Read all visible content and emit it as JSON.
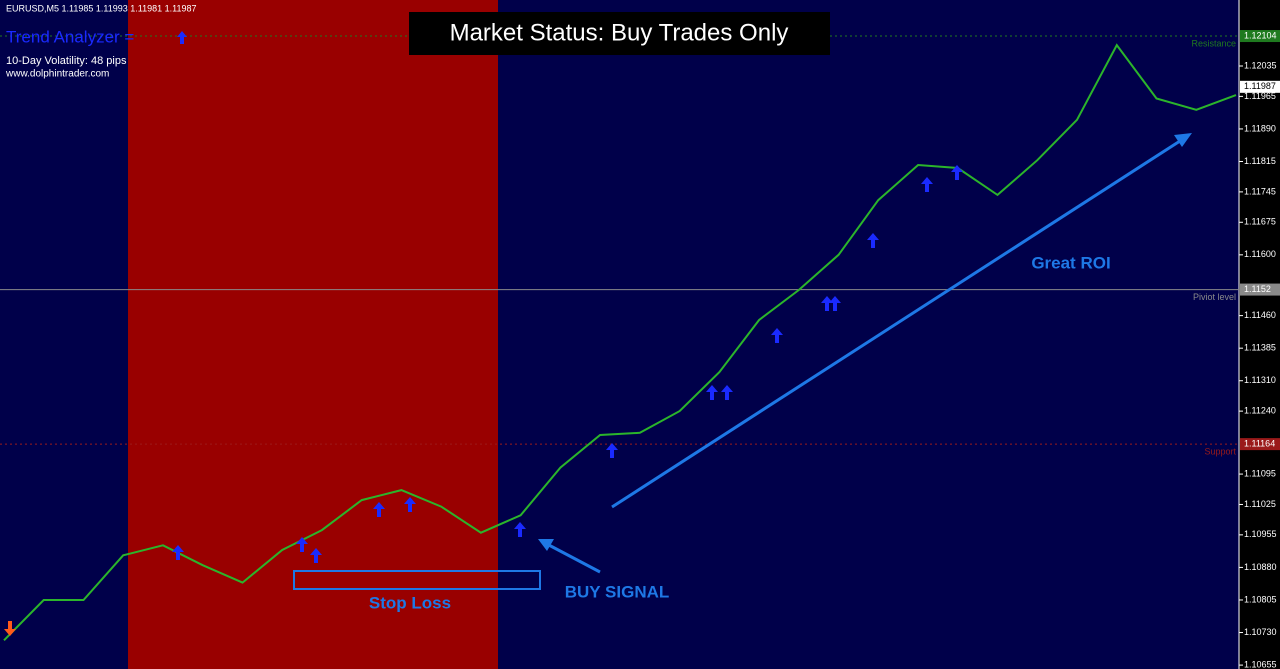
{
  "header": {
    "symbol": "EURUSD,M5  1.11985 1.11993 1.11981 1.11987",
    "indicator": "Trend Analyzer =",
    "volatility": "10-Day Volatility: 48 pips",
    "website": "www.dolphintrader.com"
  },
  "status": "Market Status: Buy Trades Only",
  "annotations": {
    "roi": "Great ROI",
    "buy": "BUY SIGNAL",
    "stop": "Stop Loss"
  },
  "chart_data": {
    "type": "line",
    "series": [
      {
        "color": "#2bb52b",
        "values": [
          1.10712,
          1.10805,
          1.10805,
          1.10908,
          1.10931,
          1.10885,
          1.10845,
          1.1092,
          1.10966,
          1.11035,
          1.11058,
          1.1102,
          1.1096,
          1.11,
          1.1111,
          1.11185,
          1.1119,
          1.1124,
          1.1133,
          1.1145,
          1.11519,
          1.116,
          1.11726,
          1.11807,
          1.118,
          1.11738,
          1.11818,
          1.11911,
          1.12083,
          1.1196,
          1.11934,
          1.11968
        ]
      }
    ],
    "ylim": [
      1.10646,
      1.12187
    ],
    "yticks": [
      1.12035,
      1.11965,
      {
        "value": 1.1189,
        "label": "1.11890"
      },
      1.11815,
      1.11745,
      1.11675,
      {
        "value": 1.116,
        "label": "1.11600"
      },
      {
        "value": 1.1146,
        "label": "1.11460"
      },
      1.11385,
      {
        "value": 1.1131,
        "label": "1.11310"
      },
      {
        "value": 1.1124,
        "label": "1.11240"
      },
      1.11095,
      1.11025,
      1.10955,
      {
        "value": 1.1088,
        "label": "1.10880"
      },
      1.10805,
      {
        "value": 1.1073,
        "label": "1.10730"
      },
      1.10655
    ],
    "levels": [
      {
        "name": "Resistance",
        "value": 1.12104,
        "color": "#1f7a1f"
      },
      {
        "name": "Piviot level",
        "value": 1.1152,
        "color": "#8a8a8a"
      },
      {
        "name": "Support",
        "value": 1.11164,
        "color": "#9a1a1a"
      }
    ],
    "current_price": 1.11987
  }
}
